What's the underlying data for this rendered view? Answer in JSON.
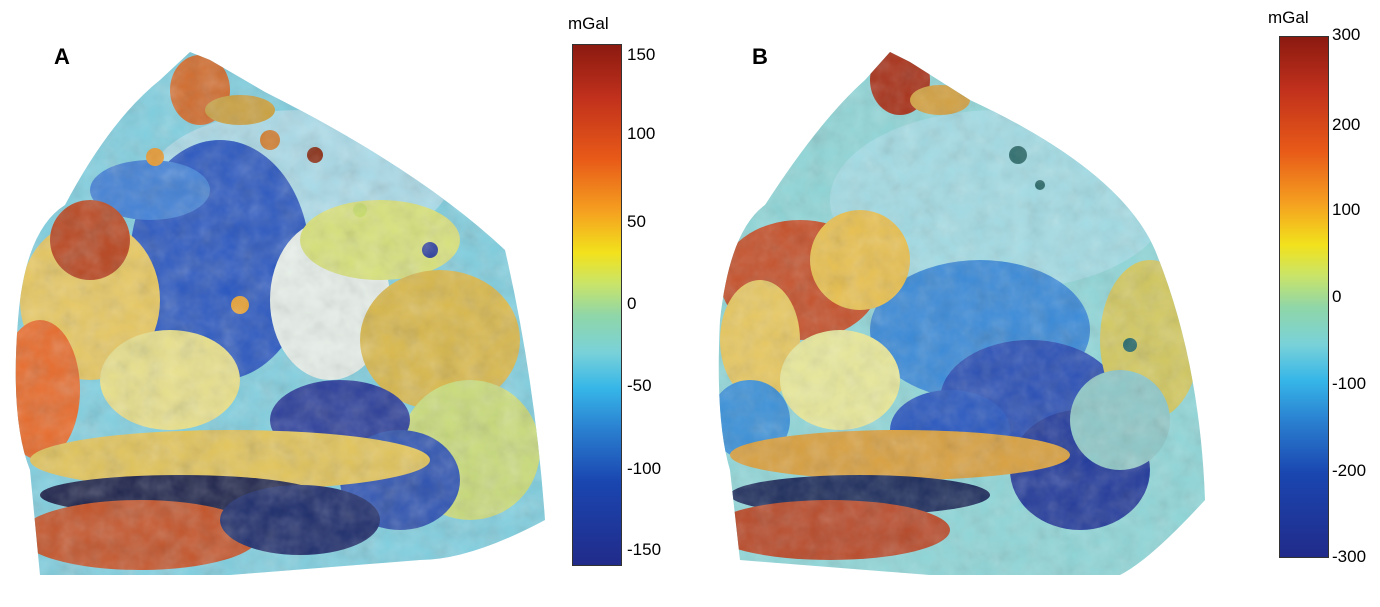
{
  "panels": [
    {
      "letter": "A",
      "colorbar": {
        "unit": "mGal",
        "ticks": [
          "150",
          "100",
          "50",
          "0",
          "-50",
          "-100",
          "-150"
        ]
      }
    },
    {
      "letter": "B",
      "colorbar": {
        "unit": "mGal",
        "ticks": [
          "300",
          "200",
          "100",
          "0",
          "-100",
          "-200",
          "-300"
        ]
      }
    }
  ],
  "colors": {
    "high": "#8b1a10",
    "mid_high": "#f2e21c",
    "zero": "#8fd6a8",
    "mid_low": "#36b6e8",
    "low": "#212b8a"
  }
}
